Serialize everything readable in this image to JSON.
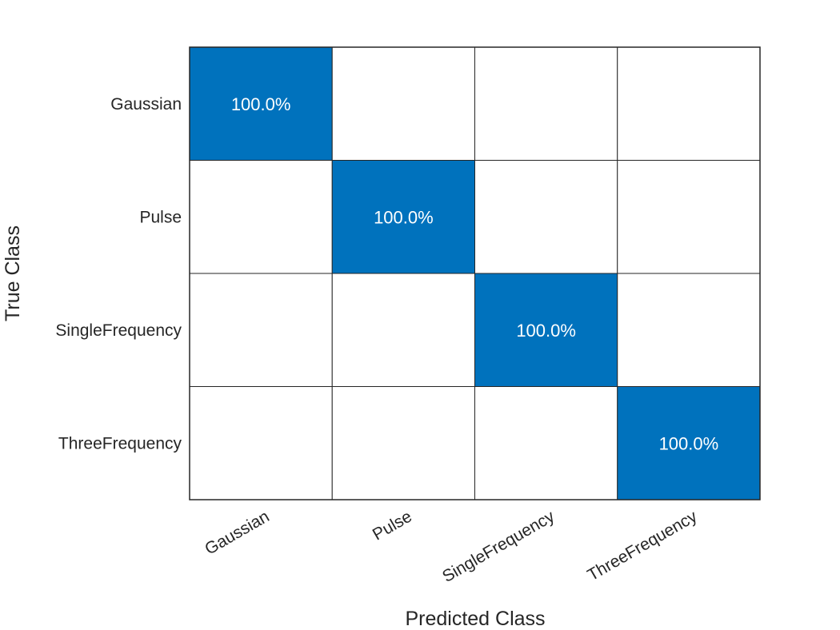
{
  "chart_data": {
    "type": "heatmap",
    "xlabel": "Predicted Class",
    "ylabel": "True Class",
    "categories": [
      "Gaussian",
      "Pulse",
      "SingleFrequency",
      "ThreeFrequency"
    ],
    "values": [
      [
        100.0,
        null,
        null,
        null
      ],
      [
        null,
        100.0,
        null,
        null
      ],
      [
        null,
        null,
        100.0,
        null
      ],
      [
        null,
        null,
        null,
        100.0
      ]
    ],
    "value_format": "percent",
    "fill_color": "#0072BD",
    "empty_color": "#FFFFFF",
    "grid_color": "#262626"
  }
}
